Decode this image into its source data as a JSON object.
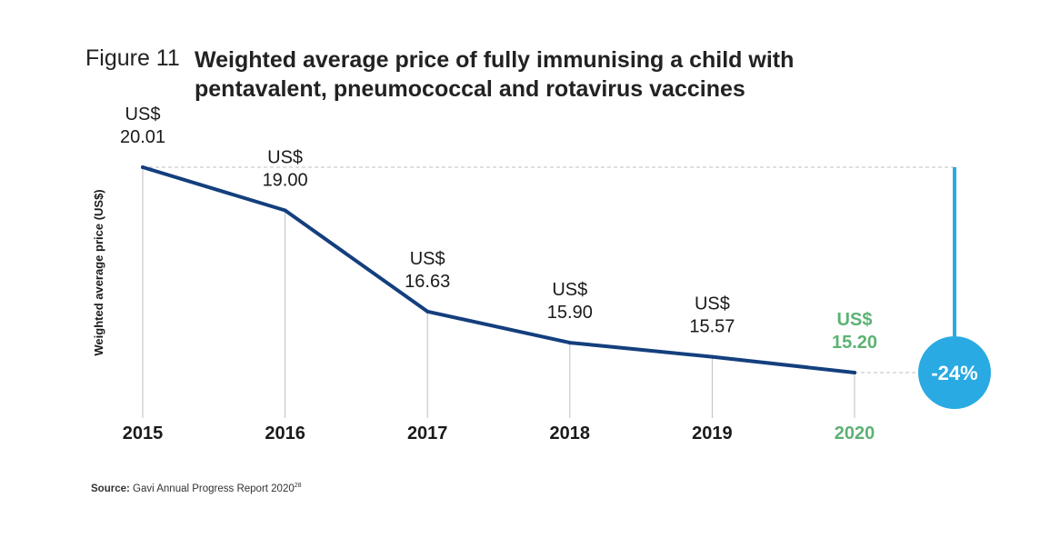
{
  "figure_label": "Figure 11",
  "source": {
    "label": "Source:",
    "text": "Gavi Annual Progress Report 2020",
    "superscript": "28"
  },
  "colors": {
    "line": "#143f7e",
    "highlight": "#5db274",
    "accent": "#29aae2",
    "grid": "#bfbfbf",
    "text": "#1a1a1a"
  },
  "chart_data": {
    "type": "line",
    "title": "Weighted average price of fully immunising a child with pentavalent, pneumococcal and rotavirus vaccines",
    "xlabel": "",
    "ylabel": "Weighted average price (US$)",
    "categories": [
      "2015",
      "2016",
      "2017",
      "2018",
      "2019",
      "2020"
    ],
    "series": [
      {
        "name": "Weighted average price",
        "values": [
          20.01,
          19.0,
          16.63,
          15.9,
          15.57,
          15.2
        ]
      }
    ],
    "data_labels": [
      {
        "prefix": "US$",
        "value": "20.01"
      },
      {
        "prefix": "US$",
        "value": "19.00"
      },
      {
        "prefix": "US$",
        "value": "16.63"
      },
      {
        "prefix": "US$",
        "value": "15.90"
      },
      {
        "prefix": "US$",
        "value": "15.57"
      },
      {
        "prefix": "US$",
        "value": "15.20"
      }
    ],
    "highlight_index": 5,
    "ylim": [
      13.5,
      21
    ],
    "change_label": "-24%",
    "grid": false
  }
}
